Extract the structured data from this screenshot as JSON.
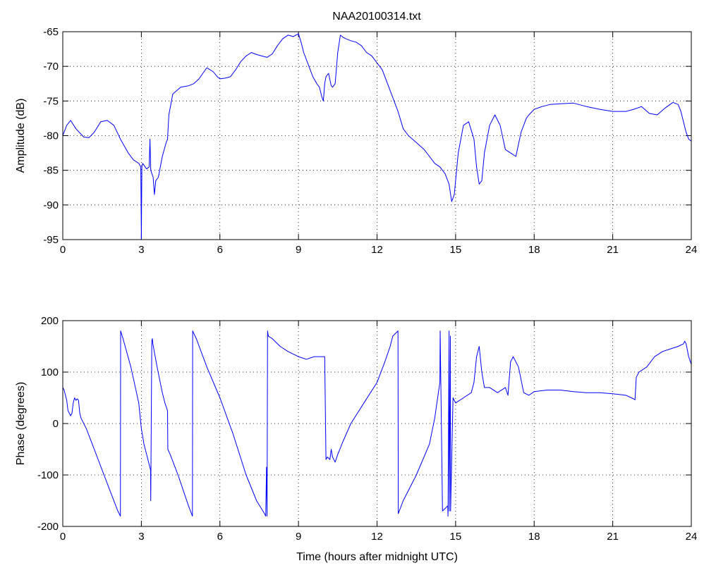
{
  "chart_data": [
    {
      "type": "line",
      "title": "NAA20100314.txt",
      "xlabel": "",
      "ylabel": "Amplitude (dB)",
      "xlim": [
        0,
        24
      ],
      "ylim": [
        -95,
        -65
      ],
      "xticks": [
        "0",
        "3",
        "6",
        "9",
        "12",
        "15",
        "18",
        "21",
        "24"
      ],
      "yticks": [
        "-65",
        "-70",
        "-75",
        "-80",
        "-85",
        "-90",
        "-95"
      ],
      "grid": true,
      "series": [
        {
          "color": "#0000ff",
          "x": [
            0,
            0.15,
            0.3,
            0.5,
            0.8,
            1.0,
            1.2,
            1.45,
            1.7,
            1.95,
            2.2,
            2.5,
            2.7,
            2.9,
            2.98,
            3.0,
            3.02,
            3.05,
            3.2,
            3.3,
            3.33,
            3.36,
            3.45,
            3.5,
            3.55,
            3.65,
            3.8,
            3.95,
            4.0,
            4.05,
            4.2,
            4.5,
            4.8,
            5.0,
            5.2,
            5.5,
            5.75,
            5.9,
            6.0,
            6.2,
            6.4,
            6.6,
            6.8,
            7.0,
            7.2,
            7.4,
            7.6,
            7.8,
            8.0,
            8.2,
            8.4,
            8.6,
            8.8,
            9.0,
            9.1,
            9.2,
            9.4,
            9.55,
            9.7,
            9.8,
            9.9,
            9.95,
            10.0,
            10.05,
            10.15,
            10.25,
            10.3,
            10.4,
            10.5,
            10.6,
            10.7,
            10.8,
            11.0,
            11.2,
            11.4,
            11.6,
            11.8,
            12.0,
            12.2,
            12.4,
            12.6,
            12.8,
            13.0,
            13.2,
            13.5,
            13.8,
            14.0,
            14.2,
            14.4,
            14.6,
            14.75,
            14.85,
            14.95,
            15.1,
            15.3,
            15.5,
            15.7,
            15.8,
            15.9,
            16.0,
            16.1,
            16.3,
            16.5,
            16.7,
            16.9,
            17.1,
            17.3,
            17.5,
            17.7,
            17.8,
            18.0,
            18.3,
            18.6,
            19.0,
            19.5,
            20.0,
            20.5,
            21.0,
            21.5,
            21.8,
            22.1,
            22.4,
            22.7,
            23.0,
            23.3,
            23.5,
            23.6,
            23.7,
            23.8,
            23.9,
            24.0
          ],
          "y": [
            -80.0,
            -78.5,
            -77.8,
            -79.0,
            -80.2,
            -80.3,
            -79.5,
            -78.0,
            -77.8,
            -78.5,
            -80.5,
            -82.5,
            -83.5,
            -84.0,
            -84.5,
            -95.0,
            -84.5,
            -84.0,
            -84.8,
            -84.5,
            -80.5,
            -85.0,
            -86.0,
            -88.5,
            -86.5,
            -86.0,
            -83.0,
            -81.0,
            -80.5,
            -77.0,
            -74.0,
            -73.0,
            -72.8,
            -72.5,
            -71.8,
            -70.2,
            -70.8,
            -71.5,
            -71.8,
            -71.7,
            -71.5,
            -70.5,
            -69.3,
            -68.5,
            -68.0,
            -68.3,
            -68.5,
            -68.7,
            -68.2,
            -67.0,
            -66.0,
            -65.5,
            -65.7,
            -65.3,
            -66.5,
            -68.0,
            -70.0,
            -71.5,
            -72.5,
            -73.0,
            -74.5,
            -75.0,
            -72.5,
            -71.5,
            -71.0,
            -72.8,
            -73.0,
            -72.5,
            -68.0,
            -65.5,
            -65.8,
            -66.0,
            -66.3,
            -66.5,
            -67.0,
            -68.0,
            -68.5,
            -69.5,
            -70.5,
            -72.5,
            -74.5,
            -76.5,
            -79.0,
            -80.0,
            -81.0,
            -82.0,
            -83.0,
            -84.0,
            -84.5,
            -85.5,
            -87.0,
            -89.5,
            -88.5,
            -82.5,
            -78.5,
            -78.0,
            -80.5,
            -84.5,
            -87.0,
            -86.5,
            -82.5,
            -78.5,
            -77.0,
            -78.5,
            -82.0,
            -82.5,
            -83.0,
            -79.5,
            -77.5,
            -77.0,
            -76.2,
            -75.8,
            -75.5,
            -75.4,
            -75.3,
            -75.8,
            -76.2,
            -76.5,
            -76.5,
            -76.2,
            -75.8,
            -76.8,
            -77.0,
            -76.0,
            -75.2,
            -75.5,
            -76.5,
            -78.0,
            -79.5,
            -80.5,
            -80.8
          ]
        }
      ]
    },
    {
      "type": "line",
      "title": "",
      "xlabel": "Time (hours after midnight UTC)",
      "ylabel": "Phase (degrees)",
      "xlim": [
        0,
        24
      ],
      "ylim": [
        -200,
        200
      ],
      "xticks": [
        "0",
        "3",
        "6",
        "9",
        "12",
        "15",
        "18",
        "21",
        "24"
      ],
      "yticks": [
        "200",
        "100",
        "0",
        "-100",
        "-200"
      ],
      "grid": true,
      "series": [
        {
          "color": "#0000ff",
          "x": [
            0,
            0.05,
            0.15,
            0.2,
            0.25,
            0.3,
            0.35,
            0.4,
            0.45,
            0.5,
            0.55,
            0.6,
            0.65,
            0.7,
            0.9,
            1.2,
            1.5,
            1.8,
            2.1,
            2.2,
            2.21,
            2.3,
            2.6,
            2.9,
            3.0,
            3.1,
            3.25,
            3.35,
            3.36,
            3.4,
            3.42,
            3.44,
            3.6,
            3.8,
            3.9,
            4.0,
            4.01,
            4.1,
            4.4,
            4.8,
            4.95,
            4.96,
            5.1,
            5.5,
            6.0,
            6.5,
            7.0,
            7.4,
            7.7,
            7.75,
            7.78,
            7.8,
            7.82,
            7.85,
            8.0,
            8.3,
            8.6,
            9.0,
            9.3,
            9.6,
            9.8,
            10.0,
            10.05,
            10.1,
            10.2,
            10.25,
            10.3,
            10.4,
            10.5,
            10.7,
            11.0,
            11.5,
            12.0,
            12.3,
            12.5,
            12.6,
            12.8,
            12.81,
            13.0,
            13.5,
            14.0,
            14.2,
            14.4,
            14.41,
            14.5,
            14.6,
            14.7,
            14.71,
            14.75,
            14.76,
            14.8,
            14.81,
            14.9,
            15.0,
            15.3,
            15.6,
            15.7,
            15.8,
            15.9,
            16.0,
            16.1,
            16.3,
            16.6,
            16.9,
            17.0,
            17.1,
            17.2,
            17.4,
            17.6,
            17.8,
            18.0,
            18.5,
            19.0,
            19.5,
            20.0,
            20.5,
            21.0,
            21.5,
            21.8,
            21.85,
            21.9,
            22.0,
            22.3,
            22.6,
            22.9,
            23.2,
            23.5,
            23.7,
            23.75,
            23.8,
            23.9,
            24.0
          ],
          "y": [
            70,
            65,
            45,
            25,
            20,
            15,
            20,
            40,
            50,
            45,
            48,
            45,
            20,
            10,
            -10,
            -50,
            -90,
            -130,
            -170,
            -180,
            180,
            165,
            110,
            40,
            -10,
            -40,
            -70,
            -90,
            -150,
            160,
            165,
            155,
            110,
            60,
            40,
            25,
            -50,
            -60,
            -100,
            -160,
            -180,
            180,
            165,
            110,
            50,
            -20,
            -100,
            -150,
            -175,
            -180,
            -85,
            -180,
            180,
            170,
            165,
            150,
            140,
            130,
            125,
            130,
            130,
            130,
            -70,
            -65,
            -70,
            -50,
            -65,
            -75,
            -60,
            -35,
            0,
            40,
            80,
            120,
            150,
            170,
            180,
            -175,
            -150,
            -100,
            -40,
            10,
            80,
            180,
            -170,
            -165,
            -160,
            -180,
            180,
            -170,
            170,
            -170,
            50,
            40,
            50,
            60,
            80,
            130,
            150,
            100,
            70,
            70,
            60,
            70,
            55,
            120,
            130,
            110,
            60,
            55,
            62,
            65,
            65,
            62,
            60,
            60,
            58,
            55,
            48,
            46,
            90,
            100,
            110,
            130,
            140,
            145,
            150,
            155,
            160,
            155,
            130,
            115
          ]
        }
      ]
    }
  ]
}
